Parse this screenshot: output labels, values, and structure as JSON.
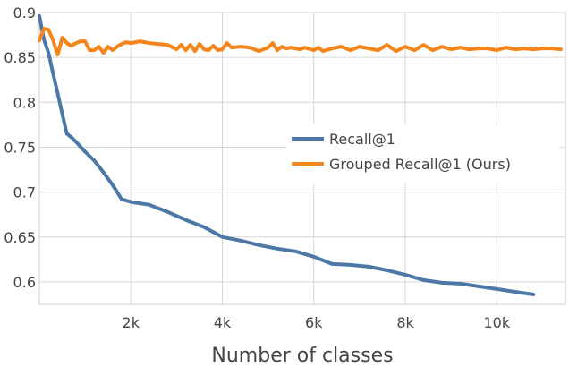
{
  "chart_data": {
    "type": "line",
    "title": "",
    "xlabel": "Number of classes",
    "ylabel": "",
    "xlim": [
      0,
      11500
    ],
    "ylim": [
      0.575,
      0.9
    ],
    "grid": true,
    "legend_position": "right",
    "x_ticks": [
      {
        "value": 2000,
        "label": "2k"
      },
      {
        "value": 4000,
        "label": "4k"
      },
      {
        "value": 6000,
        "label": "6k"
      },
      {
        "value": 8000,
        "label": "8k"
      },
      {
        "value": 10000,
        "label": "10k"
      }
    ],
    "y_ticks": [
      {
        "value": 0.6,
        "label": "0.6"
      },
      {
        "value": 0.65,
        "label": "0.65"
      },
      {
        "value": 0.7,
        "label": "0.7"
      },
      {
        "value": 0.75,
        "label": "0.75"
      },
      {
        "value": 0.8,
        "label": "0.8"
      },
      {
        "value": 0.85,
        "label": "0.85"
      },
      {
        "value": 0.9,
        "label": "0.9"
      }
    ],
    "series": [
      {
        "name": "Recall@1",
        "color": "#4c78a8",
        "x": [
          0,
          100,
          200,
          300,
          400,
          500,
          600,
          700,
          800,
          1000,
          1200,
          1400,
          1600,
          1800,
          2000,
          2400,
          2800,
          3200,
          3600,
          4000,
          4400,
          4800,
          5200,
          5600,
          6000,
          6400,
          6800,
          7200,
          7600,
          8000,
          8400,
          8800,
          9200,
          9600,
          10000,
          10400,
          10800
        ],
        "values": [
          0.896,
          0.87,
          0.855,
          0.832,
          0.81,
          0.787,
          0.765,
          0.761,
          0.756,
          0.745,
          0.735,
          0.722,
          0.708,
          0.692,
          0.689,
          0.686,
          0.678,
          0.669,
          0.661,
          0.65,
          0.646,
          0.641,
          0.637,
          0.634,
          0.628,
          0.62,
          0.619,
          0.617,
          0.613,
          0.608,
          0.602,
          0.599,
          0.598,
          0.595,
          0.592,
          0.589,
          0.586
        ]
      },
      {
        "name": "Grouped Recall@1 (Ours)",
        "color": "#f58518",
        "x": [
          0,
          100,
          200,
          300,
          400,
          500,
          600,
          700,
          800,
          900,
          1000,
          1100,
          1200,
          1300,
          1400,
          1500,
          1600,
          1700,
          1800,
          1900,
          2000,
          2200,
          2400,
          2600,
          2800,
          3000,
          3100,
          3200,
          3300,
          3400,
          3500,
          3600,
          3700,
          3800,
          3900,
          4000,
          4100,
          4200,
          4400,
          4600,
          4800,
          5000,
          5100,
          5200,
          5300,
          5400,
          5500,
          5600,
          5700,
          5800,
          6000,
          6100,
          6200,
          6400,
          6600,
          6800,
          7000,
          7200,
          7400,
          7600,
          7800,
          8000,
          8200,
          8400,
          8600,
          8800,
          9000,
          9200,
          9400,
          9600,
          9800,
          10000,
          10200,
          10400,
          10600,
          10800,
          11000,
          11200,
          11400
        ],
        "values": [
          0.869,
          0.882,
          0.881,
          0.869,
          0.853,
          0.872,
          0.866,
          0.863,
          0.866,
          0.868,
          0.868,
          0.858,
          0.858,
          0.862,
          0.855,
          0.862,
          0.858,
          0.862,
          0.865,
          0.867,
          0.866,
          0.868,
          0.866,
          0.865,
          0.864,
          0.859,
          0.864,
          0.858,
          0.864,
          0.857,
          0.865,
          0.859,
          0.858,
          0.863,
          0.858,
          0.859,
          0.866,
          0.861,
          0.862,
          0.861,
          0.857,
          0.861,
          0.866,
          0.858,
          0.862,
          0.86,
          0.861,
          0.86,
          0.859,
          0.861,
          0.858,
          0.861,
          0.857,
          0.86,
          0.862,
          0.858,
          0.862,
          0.86,
          0.858,
          0.864,
          0.857,
          0.862,
          0.858,
          0.864,
          0.858,
          0.862,
          0.859,
          0.861,
          0.859,
          0.86,
          0.86,
          0.858,
          0.861,
          0.859,
          0.86,
          0.859,
          0.86,
          0.86,
          0.859
        ]
      }
    ]
  }
}
